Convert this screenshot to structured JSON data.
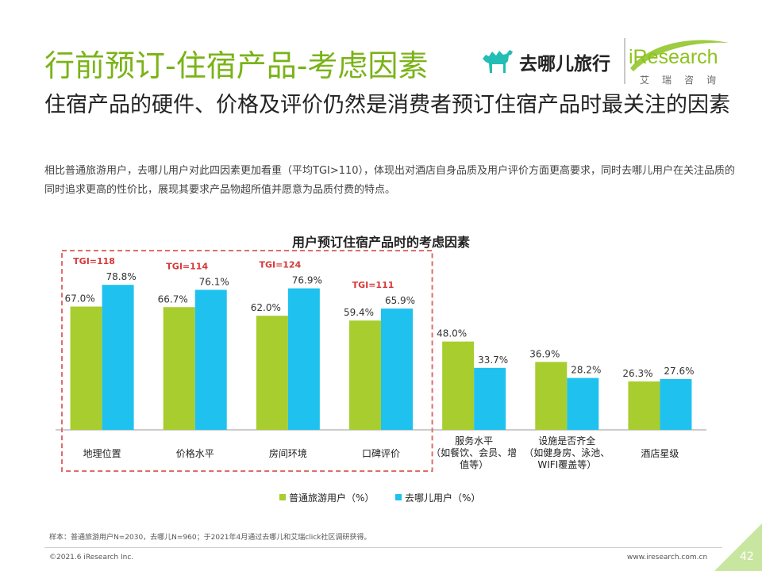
{
  "header": {
    "title": "行前预订-住宿产品-考虑因素",
    "logo_qunar_text": "去哪儿旅行",
    "logo_ir_text": "iResearch",
    "logo_ir_sub": "艾瑞咨询"
  },
  "subtitle": "住宿产品的硬件、价格及评价仍然是消费者预订住宿产品时最关注的因素",
  "description": "相比普通旅游用户，去哪儿用户对此四因素更加看重（平均TGI>110），体现出对酒店自身品质及用户评价方面更高要求，同时去哪儿用户在关注品质的同时追求更高的性价比，展现其要求产品物超所值并愿意为品质付费的特点。",
  "colors": {
    "brand_green": "#7ab317",
    "series_a": "#a8cd2e",
    "series_b": "#1fc2ee",
    "highlight": "#d6393a"
  },
  "chart_data": {
    "type": "bar",
    "title": "用户预订住宿产品时的考虑因素",
    "categories": [
      [
        "地理位置"
      ],
      [
        "价格水平"
      ],
      [
        "房间环境"
      ],
      [
        "口碑评价"
      ],
      [
        "服务水平",
        "（如餐饮、会员、增",
        "值等）"
      ],
      [
        "设施是否齐全",
        "（如健身房、泳池、",
        "WIFI覆盖等）"
      ],
      [
        "酒店星级"
      ]
    ],
    "series": [
      {
        "name": "普通旅游用户（%）",
        "values": [
          67.0,
          66.7,
          62.0,
          59.4,
          48.0,
          36.9,
          26.3
        ],
        "labels": [
          "67.0%",
          "66.7%",
          "62.0%",
          "59.4%",
          "48.0%",
          "36.9%",
          "26.3%"
        ]
      },
      {
        "name": "去哪儿用户（%）",
        "values": [
          78.8,
          76.1,
          76.9,
          65.9,
          33.7,
          28.2,
          27.6
        ],
        "labels": [
          "78.8%",
          "76.1%",
          "76.9%",
          "65.9%",
          "33.7%",
          "28.2%",
          "27.6%"
        ]
      }
    ],
    "tgi_annotations": [
      "TGI=118",
      "TGI=114",
      "TGI=124",
      "TGI=111"
    ],
    "highlight_categories": 4,
    "legend_position": "bottom-center",
    "ylim": [
      0,
      100
    ],
    "grid": false
  },
  "footer": {
    "note": "样本：普通旅游用户N=2030，去哪儿N=960；于2021年4月通过去哪儿和艾瑞click社区调研获得。",
    "copyright": "©2021.6 iResearch Inc.",
    "website": "www.iresearch.com.cn",
    "page_number": "42"
  }
}
